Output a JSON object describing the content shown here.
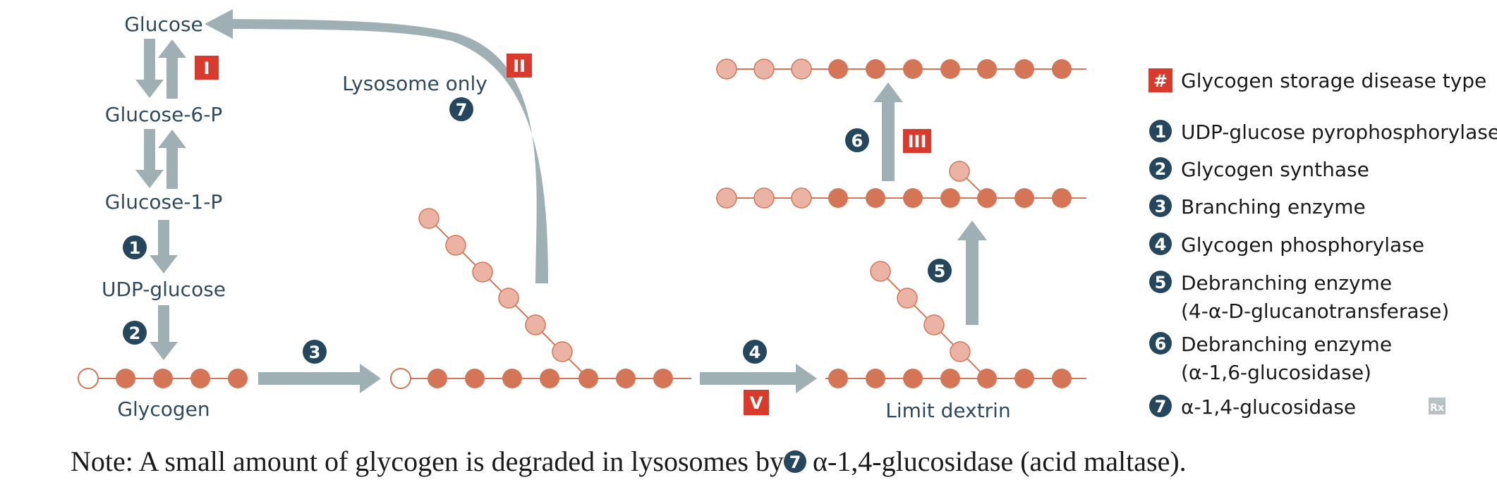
{
  "colors": {
    "arrow": "#9fb0b4",
    "dark_circle": "#24475e",
    "red_badge": "#d93a2b",
    "glucose_dark": "#d47556",
    "glucose_light": "#eab3a4",
    "chain_line": "#d47556",
    "text": "#2f4a5e"
  },
  "pathway": {
    "glucose": "Glucose",
    "glucose_6_p": "Glucose-6-P",
    "glucose_1_p": "Glucose-1-P",
    "udp_glucose": "UDP-glucose",
    "glycogen": "Glycogen",
    "lysosome_only": "Lysosome only",
    "limit_dextrin": "Limit dextrin"
  },
  "badges": {
    "type_I": "I",
    "type_II": "II",
    "type_III": "III",
    "type_V": "V"
  },
  "steps": {
    "s1": "1",
    "s2": "2",
    "s3": "3",
    "s4": "4",
    "s5": "5",
    "s6": "6",
    "s7": "7"
  },
  "legend": {
    "hash_symbol": "#",
    "hash_label": "Glycogen storage disease type",
    "items": [
      {
        "num": "1",
        "label": "UDP-glucose pyrophosphorylase"
      },
      {
        "num": "2",
        "label": "Glycogen synthase"
      },
      {
        "num": "3",
        "label": "Branching enzyme"
      },
      {
        "num": "4",
        "label": "Glycogen phosphorylase"
      },
      {
        "num": "5",
        "label": "Debranching enzyme",
        "label2": "(4-α-D-glucanotransferase)"
      },
      {
        "num": "6",
        "label": "Debranching enzyme",
        "label2": "(α-1,6-glucosidase)"
      },
      {
        "num": "7",
        "label": "α-1,4-glucosidase"
      }
    ],
    "rx_mark": "Rx"
  },
  "note": {
    "prefix": "Note: A small amount of glycogen is degraded in lysosomes by",
    "num": "7",
    "suffix": "α-1,4-glucosidase (acid maltase)."
  }
}
